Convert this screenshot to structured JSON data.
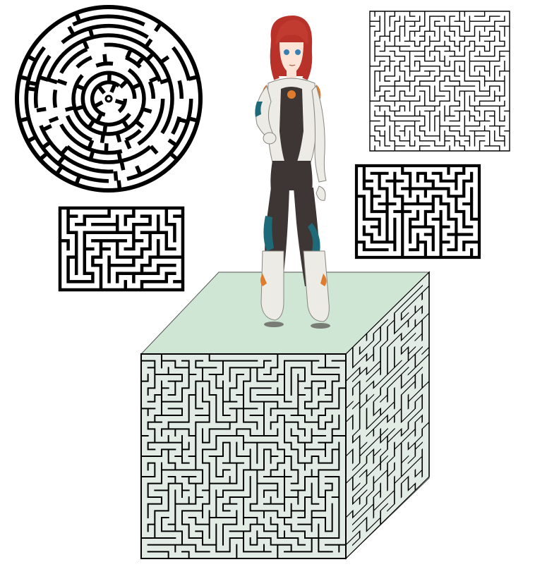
{
  "palette": {
    "background": "#ffffff",
    "ink": "#000000",
    "cube_top": "#cfe6d4",
    "cube_side": "#e2ece4",
    "hair": "#b8322a",
    "suit_white": "#ecebe6",
    "suit_dark": "#3d3634",
    "accent_teal": "#1f6a78",
    "accent_orange": "#e07b2d",
    "skin": "#fbe4d6",
    "eyes": "#3a7fb3"
  },
  "icons": {
    "circular_maze": "circular-maze-icon",
    "square_maze": "square-maze-icon",
    "cube_maze": "cube-maze-icon",
    "character": "character-figure-icon"
  }
}
